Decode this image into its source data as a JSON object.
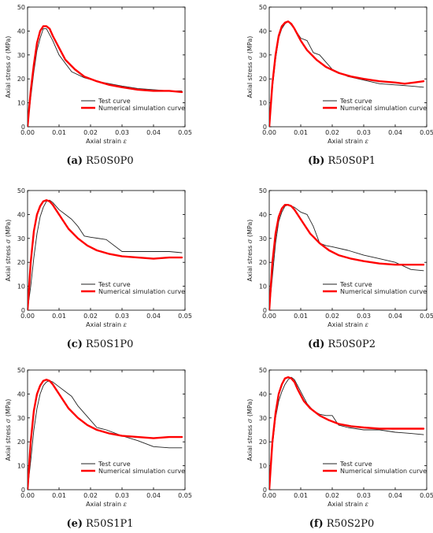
{
  "colors": {
    "test": "#222222",
    "simulation": "#ff0000",
    "axis": "#000000"
  },
  "chart_data": [
    {
      "type": "line",
      "caption_letter": "(a)",
      "caption_name": "R50S0P0",
      "xlabel_text": "Axial strain ",
      "xlabel_symbol": "ε",
      "ylabel_text": "Axial stress ",
      "ylabel_symbol": "σ",
      "ylabel_unit": " (MPa)",
      "xlim": [
        0,
        0.05
      ],
      "ylim": [
        0,
        50
      ],
      "xticks": [
        "0.00",
        "0.01",
        "0.02",
        "0.03",
        "0.04",
        "0.05"
      ],
      "yticks": [
        "0",
        "10",
        "20",
        "30",
        "40",
        "50"
      ],
      "legend": {
        "placement": "lower-right",
        "test_label": "Test curve",
        "sim_label": "Numerical simulation curve"
      },
      "series": [
        {
          "name": "Test curve",
          "role": "test",
          "x": [
            0,
            0.001,
            0.002,
            0.003,
            0.004,
            0.005,
            0.006,
            0.008,
            0.01,
            0.014,
            0.018,
            0.022,
            0.026,
            0.03,
            0.035,
            0.04,
            0.045,
            0.049
          ],
          "y": [
            0,
            12,
            23,
            32,
            37,
            41,
            41,
            36,
            30,
            23,
            20.5,
            19,
            18,
            17,
            16,
            15.5,
            15,
            15
          ]
        },
        {
          "name": "Numerical simulation curve",
          "role": "simulation",
          "x": [
            0,
            0.001,
            0.002,
            0.003,
            0.004,
            0.005,
            0.006,
            0.007,
            0.008,
            0.01,
            0.012,
            0.015,
            0.018,
            0.022,
            0.026,
            0.03,
            0.035,
            0.04,
            0.045,
            0.049
          ],
          "y": [
            0,
            15,
            26,
            35,
            40,
            42,
            42,
            41,
            38,
            33,
            28,
            24,
            21,
            19,
            17.5,
            16.5,
            15.5,
            15,
            15,
            14.5
          ]
        }
      ]
    },
    {
      "type": "line",
      "caption_letter": "(b)",
      "caption_name": "R50S0P1",
      "xlabel_text": "Axial strain ",
      "xlabel_symbol": "ε",
      "ylabel_text": "Axial stress ",
      "ylabel_symbol": "σ",
      "ylabel_unit": " (MPa)",
      "xlim": [
        0,
        0.05
      ],
      "ylim": [
        0,
        50
      ],
      "xticks": [
        "0.00",
        "0.01",
        "0.02",
        "0.03",
        "0.04",
        "0.05"
      ],
      "yticks": [
        "0",
        "10",
        "20",
        "30",
        "40",
        "50"
      ],
      "legend": {
        "placement": "lower-right",
        "test_label": "Test curve",
        "sim_label": "Numerical simulation curve"
      },
      "series": [
        {
          "name": "Test curve",
          "role": "test",
          "x": [
            0,
            0.001,
            0.002,
            0.003,
            0.004,
            0.005,
            0.006,
            0.008,
            0.01,
            0.012,
            0.014,
            0.016,
            0.018,
            0.02,
            0.025,
            0.03,
            0.035,
            0.04,
            0.045,
            0.049
          ],
          "y": [
            0,
            16,
            28,
            37,
            41,
            43,
            44,
            41,
            37,
            36,
            31,
            30,
            27,
            24,
            21,
            19.5,
            18,
            17.5,
            17,
            16.5
          ]
        },
        {
          "name": "Numerical simulation curve",
          "role": "simulation",
          "x": [
            0,
            0.001,
            0.002,
            0.003,
            0.004,
            0.005,
            0.006,
            0.007,
            0.008,
            0.01,
            0.012,
            0.015,
            0.018,
            0.022,
            0.026,
            0.03,
            0.035,
            0.04,
            0.043,
            0.046,
            0.049
          ],
          "y": [
            0,
            18,
            30,
            38,
            42,
            43.5,
            44,
            43,
            41,
            36,
            32,
            28,
            25,
            22.5,
            21,
            20,
            19,
            18.5,
            18,
            18.5,
            19
          ]
        }
      ]
    },
    {
      "type": "line",
      "caption_letter": "(c)",
      "caption_name": "R50S1P0",
      "xlabel_text": "Axial strain ",
      "xlabel_symbol": "ε",
      "ylabel_text": "Axial stress ",
      "ylabel_symbol": "σ",
      "ylabel_unit": " (MPa)",
      "xlim": [
        0,
        0.05
      ],
      "ylim": [
        0,
        50
      ],
      "xticks": [
        "0.00",
        "0.01",
        "0.02",
        "0.03",
        "0.04",
        "0.05"
      ],
      "yticks": [
        "0",
        "10",
        "20",
        "30",
        "40",
        "50"
      ],
      "legend": {
        "placement": "lower-right",
        "test_label": "Test curve",
        "sim_label": "Numerical simulation curve"
      },
      "series": [
        {
          "name": "Test curve",
          "role": "test",
          "x": [
            0,
            0.001,
            0.002,
            0.003,
            0.004,
            0.005,
            0.006,
            0.007,
            0.008,
            0.01,
            0.012,
            0.014,
            0.016,
            0.018,
            0.02,
            0.025,
            0.03,
            0.035,
            0.04,
            0.045,
            0.049
          ],
          "y": [
            0,
            10,
            22,
            32,
            39,
            43,
            45.5,
            46,
            45,
            42,
            40,
            38,
            35,
            31,
            30.5,
            29.5,
            24.5,
            24.5,
            24.5,
            24.5,
            24
          ]
        },
        {
          "name": "Numerical simulation curve",
          "role": "simulation",
          "x": [
            0,
            0.001,
            0.002,
            0.003,
            0.004,
            0.005,
            0.006,
            0.007,
            0.008,
            0.009,
            0.011,
            0.013,
            0.016,
            0.019,
            0.022,
            0.026,
            0.03,
            0.035,
            0.04,
            0.045,
            0.049
          ],
          "y": [
            0,
            20,
            33,
            40,
            43.5,
            45.5,
            46,
            45.5,
            44,
            42,
            38,
            34,
            30,
            27,
            25,
            23.5,
            22.5,
            22,
            21.5,
            22,
            22
          ]
        }
      ]
    },
    {
      "type": "line",
      "caption_letter": "(d)",
      "caption_name": "R50S0P2",
      "xlabel_text": "Axial strain ",
      "xlabel_symbol": "ε",
      "ylabel_text": "Axial stress ",
      "ylabel_symbol": "σ",
      "ylabel_unit": " (MPa)",
      "xlim": [
        0,
        0.05
      ],
      "ylim": [
        0,
        50
      ],
      "xticks": [
        "0.00",
        "0.01",
        "0.02",
        "0.03",
        "0.04",
        "0.05"
      ],
      "yticks": [
        "0",
        "10",
        "20",
        "30",
        "40",
        "50"
      ],
      "legend": {
        "placement": "lower-right",
        "test_label": "Test curve",
        "sim_label": "Numerical simulation curve"
      },
      "series": [
        {
          "name": "Test curve",
          "role": "test",
          "x": [
            0,
            0.001,
            0.002,
            0.003,
            0.004,
            0.005,
            0.006,
            0.007,
            0.008,
            0.01,
            0.012,
            0.014,
            0.016,
            0.018,
            0.02,
            0.025,
            0.03,
            0.035,
            0.04,
            0.045,
            0.049
          ],
          "y": [
            0,
            14,
            28,
            37,
            41,
            43.5,
            44,
            43.5,
            43,
            41,
            40,
            35,
            28,
            27,
            26.5,
            25,
            23,
            21.5,
            20,
            17,
            16.5
          ]
        },
        {
          "name": "Numerical simulation curve",
          "role": "simulation",
          "x": [
            0,
            0.001,
            0.002,
            0.003,
            0.004,
            0.005,
            0.006,
            0.007,
            0.008,
            0.009,
            0.011,
            0.013,
            0.016,
            0.019,
            0.022,
            0.026,
            0.03,
            0.035,
            0.04,
            0.045,
            0.049
          ],
          "y": [
            0,
            20,
            32,
            39,
            42.5,
            44,
            44,
            43.5,
            42,
            40,
            36,
            32,
            28,
            25,
            23,
            21.5,
            20.5,
            19.5,
            19,
            19,
            19
          ]
        }
      ]
    },
    {
      "type": "line",
      "caption_letter": "(e)",
      "caption_name": "R50S1P1",
      "xlabel_text": "Axial strain ",
      "xlabel_symbol": "ε",
      "ylabel_text": "Axial stress ",
      "ylabel_symbol": "σ",
      "ylabel_unit": " (MPa)",
      "xlim": [
        0,
        0.05
      ],
      "ylim": [
        0,
        50
      ],
      "xticks": [
        "0.00",
        "0.01",
        "0.02",
        "0.03",
        "0.04",
        "0.05"
      ],
      "yticks": [
        "0",
        "10",
        "20",
        "30",
        "40",
        "50"
      ],
      "legend": {
        "placement": "lower-right",
        "test_label": "Test curve",
        "sim_label": "Numerical simulation curve"
      },
      "series": [
        {
          "name": "Test curve",
          "role": "test",
          "x": [
            0,
            0.001,
            0.002,
            0.003,
            0.004,
            0.005,
            0.006,
            0.007,
            0.008,
            0.01,
            0.012,
            0.014,
            0.016,
            0.018,
            0.02,
            0.022,
            0.025,
            0.03,
            0.035,
            0.04,
            0.045,
            0.049
          ],
          "y": [
            0,
            12,
            25,
            34,
            40,
            43.5,
            45,
            45.5,
            45,
            43,
            41,
            39,
            35,
            32,
            29,
            26,
            25,
            22.5,
            20.5,
            18,
            17.5,
            17.5
          ]
        },
        {
          "name": "Numerical simulation curve",
          "role": "simulation",
          "x": [
            0,
            0.001,
            0.002,
            0.003,
            0.004,
            0.005,
            0.006,
            0.007,
            0.008,
            0.009,
            0.011,
            0.013,
            0.016,
            0.019,
            0.022,
            0.026,
            0.03,
            0.035,
            0.04,
            0.045,
            0.049
          ],
          "y": [
            0,
            20,
            33,
            40,
            43.5,
            45.5,
            46,
            45.5,
            44,
            42,
            38,
            34,
            30,
            27,
            25,
            23.5,
            22.5,
            22,
            21.5,
            22,
            22
          ]
        }
      ]
    },
    {
      "type": "line",
      "caption_letter": "(f)",
      "caption_name": "R50S2P0",
      "xlabel_text": "Axial strain ",
      "xlabel_symbol": "ε",
      "ylabel_text": "Axial stress ",
      "ylabel_symbol": "σ",
      "ylabel_unit": " (MPa)",
      "xlim": [
        0,
        0.05
      ],
      "ylim": [
        0,
        50
      ],
      "xticks": [
        "0.00",
        "0.01",
        "0.02",
        "0.03",
        "0.04",
        "0.05"
      ],
      "yticks": [
        "0",
        "10",
        "20",
        "30",
        "40",
        "50"
      ],
      "legend": {
        "placement": "lower-right",
        "test_label": "Test curve",
        "sim_label": "Numerical simulation curve"
      },
      "series": [
        {
          "name": "Test curve",
          "role": "test",
          "x": [
            0,
            0.001,
            0.002,
            0.003,
            0.004,
            0.005,
            0.006,
            0.007,
            0.008,
            0.01,
            0.012,
            0.014,
            0.016,
            0.018,
            0.02,
            0.022,
            0.025,
            0.03,
            0.035,
            0.04,
            0.045,
            0.049
          ],
          "y": [
            0,
            18,
            30,
            37,
            41,
            44,
            46,
            47,
            46,
            41,
            36,
            33,
            31.5,
            31,
            31,
            27,
            26,
            25,
            25,
            24,
            23.5,
            23
          ]
        },
        {
          "name": "Numerical simulation curve",
          "role": "simulation",
          "x": [
            0,
            0.001,
            0.002,
            0.003,
            0.004,
            0.005,
            0.006,
            0.007,
            0.008,
            0.009,
            0.011,
            0.013,
            0.016,
            0.019,
            0.022,
            0.026,
            0.03,
            0.035,
            0.04,
            0.045,
            0.049
          ],
          "y": [
            0,
            20,
            32,
            40,
            44,
            46.5,
            47,
            46.5,
            45,
            42,
            37,
            34,
            31,
            29,
            27.5,
            26.5,
            26,
            25.5,
            25.5,
            25.5,
            25.5
          ]
        }
      ]
    }
  ]
}
